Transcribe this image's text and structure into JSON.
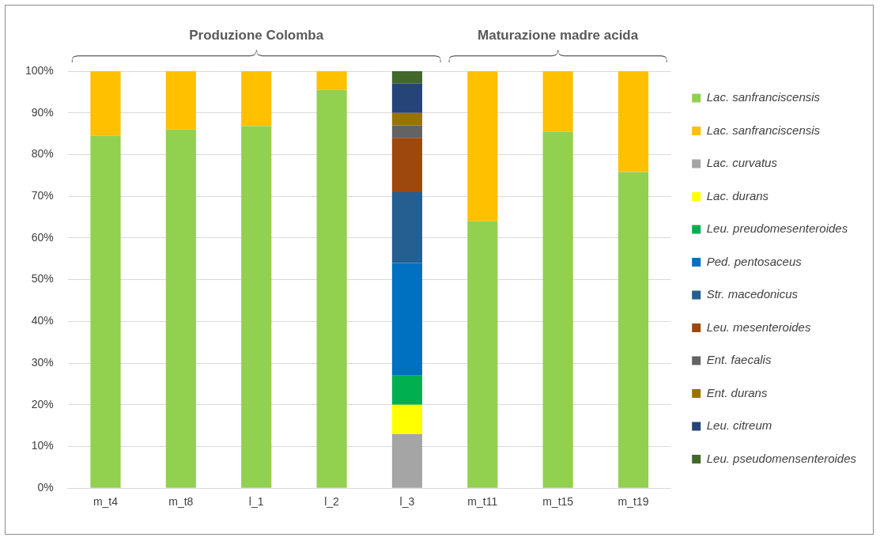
{
  "chart_data": {
    "type": "bar",
    "stacked": true,
    "categories": [
      "m_t4",
      "m_t8",
      "l_1",
      "l_2",
      "l_3",
      "m_t11",
      "m_t15",
      "m_t19"
    ],
    "series": [
      {
        "name": "Lac. sanfranciscensis",
        "color": "#92d050",
        "values": [
          84.5,
          86,
          86.8,
          95.5,
          null,
          64,
          85.5,
          75.8
        ]
      },
      {
        "name": "Lac. sanfranciscensis",
        "color": "#ffc000",
        "values": [
          15.5,
          14,
          13.2,
          4.5,
          null,
          36,
          14.5,
          24.2
        ]
      },
      {
        "name": "Lac. curvatus",
        "color": "#a5a5a5",
        "values": [
          null,
          null,
          null,
          null,
          13,
          null,
          null,
          null
        ]
      },
      {
        "name": "Lac. durans",
        "color": "#ffff00",
        "values": [
          null,
          null,
          null,
          null,
          7,
          null,
          null,
          null
        ]
      },
      {
        "name": "Leu. preudomesenteroides",
        "color": "#00b050",
        "values": [
          null,
          null,
          null,
          null,
          7,
          null,
          null,
          null
        ]
      },
      {
        "name": "Ped. pentosaceus",
        "color": "#0070c0",
        "values": [
          null,
          null,
          null,
          null,
          27,
          null,
          null,
          null
        ]
      },
      {
        "name": "Str. macedonicus",
        "color": "#255e91",
        "values": [
          null,
          null,
          null,
          null,
          17,
          null,
          null,
          null
        ]
      },
      {
        "name": "Leu. mesenteroides",
        "color": "#9e480e",
        "values": [
          null,
          null,
          null,
          null,
          13,
          null,
          null,
          null
        ]
      },
      {
        "name": "Ent. faecalis",
        "color": "#636363",
        "values": [
          null,
          null,
          null,
          null,
          3,
          null,
          null,
          null
        ]
      },
      {
        "name": "Ent. durans",
        "color": "#997300",
        "values": [
          null,
          null,
          null,
          null,
          3,
          null,
          null,
          null
        ]
      },
      {
        "name": "Leu. citreum",
        "color": "#264478",
        "values": [
          null,
          null,
          null,
          null,
          7,
          null,
          null,
          null
        ]
      },
      {
        "name": "Leu. pseudomensenteroides",
        "color": "#43682b",
        "values": [
          null,
          null,
          null,
          null,
          3,
          null,
          null,
          null
        ]
      }
    ],
    "ylim": [
      0,
      100
    ],
    "yticks": [
      {
        "value": 0,
        "label": "0%"
      },
      {
        "value": 10,
        "label": "10%"
      },
      {
        "value": 20,
        "label": "20%"
      },
      {
        "value": 30,
        "label": "30%"
      },
      {
        "value": 40,
        "label": "40%"
      },
      {
        "value": 50,
        "label": "50%"
      },
      {
        "value": 60,
        "label": "60%"
      },
      {
        "value": 70,
        "label": "70%"
      },
      {
        "value": 80,
        "label": "80%"
      },
      {
        "value": 90,
        "label": "90%"
      },
      {
        "value": 100,
        "label": "100%"
      }
    ],
    "grid": "y",
    "legend": "right",
    "annotations": [
      "Produzione Colomba",
      "Maturazione madre acida"
    ]
  }
}
